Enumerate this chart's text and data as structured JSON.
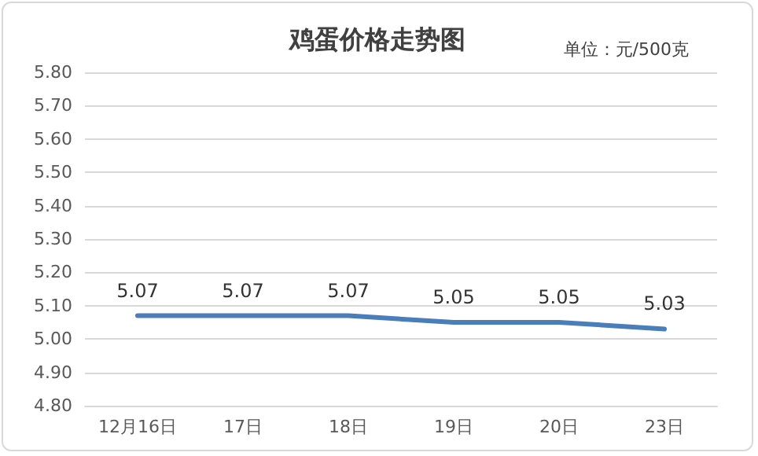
{
  "chart_data": {
    "type": "line",
    "title": "鸡蛋价格走势图",
    "annotations": [
      "单位：元/500克"
    ],
    "categories": [
      "12月16日",
      "17日",
      "18日",
      "19日",
      "20日",
      "23日"
    ],
    "series": [
      {
        "color": "#4a7ebb",
        "values": [
          5.07,
          5.07,
          5.07,
          5.05,
          5.05,
          5.03
        ]
      }
    ],
    "ylim": [
      4.8,
      5.8
    ],
    "yticks": [
      {
        "value": 4.8,
        "label": "4.80"
      },
      {
        "value": 4.9,
        "label": "4.90"
      },
      {
        "value": 5.0,
        "label": "5.00"
      },
      {
        "value": 5.1,
        "label": "5.10"
      },
      {
        "value": 5.2,
        "label": "5.20"
      },
      {
        "value": 5.3,
        "label": "5.30"
      },
      {
        "value": 5.4,
        "label": "5.40"
      },
      {
        "value": 5.5,
        "label": "5.50"
      },
      {
        "value": 5.6,
        "label": "5.60"
      },
      {
        "value": 5.7,
        "label": "5.70"
      },
      {
        "value": 5.8,
        "label": "5.80"
      }
    ],
    "grid": "y",
    "data_labels": true,
    "marker": "none",
    "line_style": "solid"
  }
}
